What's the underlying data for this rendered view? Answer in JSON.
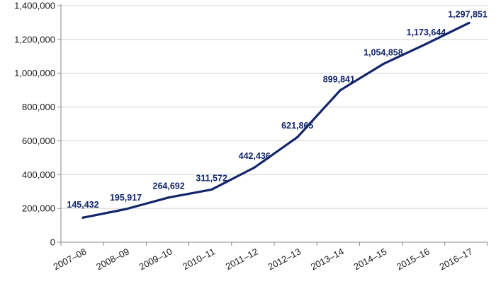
{
  "chart_data": {
    "type": "line",
    "categories": [
      "2007–08",
      "2008–09",
      "2009–10",
      "2010–11",
      "2011–12",
      "2012–13",
      "2013–14",
      "2014–15",
      "2015–16",
      "2016–17"
    ],
    "values": [
      145432,
      195917,
      264692,
      311572,
      442436,
      621865,
      899841,
      1054858,
      1173644,
      1297851
    ],
    "data_labels": [
      "145,432",
      "195,917",
      "264,692",
      "311,572",
      "442,436",
      "621,865",
      "899,841",
      "1,054,858",
      "1,173,644",
      "1,297,851"
    ],
    "y_ticks": [
      0,
      200000,
      400000,
      600000,
      800000,
      1000000,
      1200000,
      1400000
    ],
    "y_tick_labels": [
      "0",
      "200,000",
      "400,000",
      "600,000",
      "800,000",
      "1,000,000",
      "1,200,000",
      "1,400,000"
    ],
    "ylim": [
      0,
      1400000
    ],
    "grid": true,
    "title": "",
    "xlabel": "",
    "ylabel": "",
    "colors": {
      "line": "#13256b",
      "label": "#13256b",
      "grid": "#d0d0d0",
      "axis": "#8a8a8a"
    }
  }
}
